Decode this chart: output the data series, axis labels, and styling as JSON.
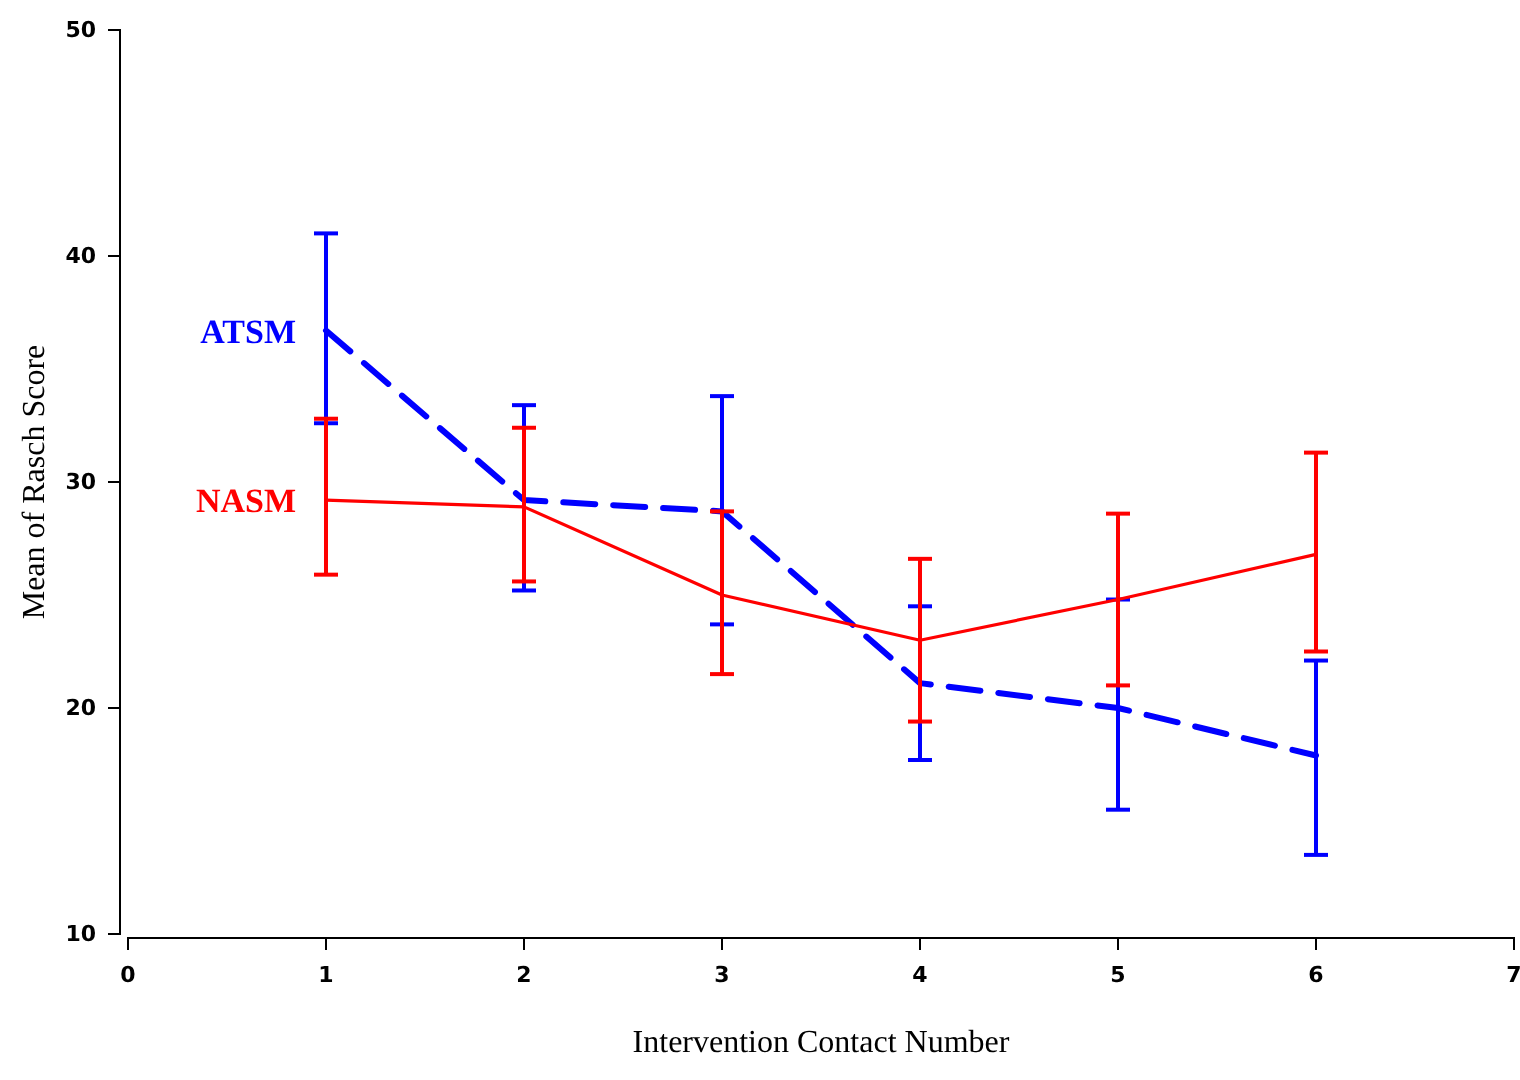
{
  "chart_data": {
    "type": "line",
    "xlabel": "Intervention Contact Number",
    "ylabel": "Mean of Rasch Score",
    "x": [
      1,
      2,
      3,
      4,
      5,
      6
    ],
    "series": [
      {
        "name": "ATSM",
        "color": "#0000ff",
        "line_style": "dashed",
        "values": [
          36.7,
          29.2,
          28.7,
          21.1,
          20.0,
          17.9
        ],
        "errors": [
          [
            32.6,
            41.0
          ],
          [
            25.2,
            33.4
          ],
          [
            23.7,
            33.8
          ],
          [
            17.7,
            24.5
          ],
          [
            15.5,
            24.8
          ],
          [
            13.5,
            22.1
          ]
        ]
      },
      {
        "name": "NASM",
        "color": "#ff0000",
        "line_style": "solid",
        "values": [
          29.2,
          28.9,
          25.0,
          23.0,
          24.8,
          26.8
        ],
        "errors": [
          [
            25.9,
            32.8
          ],
          [
            25.6,
            32.4
          ],
          [
            21.5,
            28.7
          ],
          [
            19.4,
            26.6
          ],
          [
            21.0,
            28.6
          ],
          [
            22.5,
            31.3
          ]
        ]
      }
    ],
    "xlim": [
      0,
      7
    ],
    "xticks": [
      0,
      1,
      2,
      3,
      4,
      5,
      6,
      7
    ],
    "ylim": [
      10,
      50
    ],
    "yticks": [
      10,
      20,
      30,
      40,
      50
    ],
    "grid": false,
    "legend": false,
    "marker": "none"
  }
}
